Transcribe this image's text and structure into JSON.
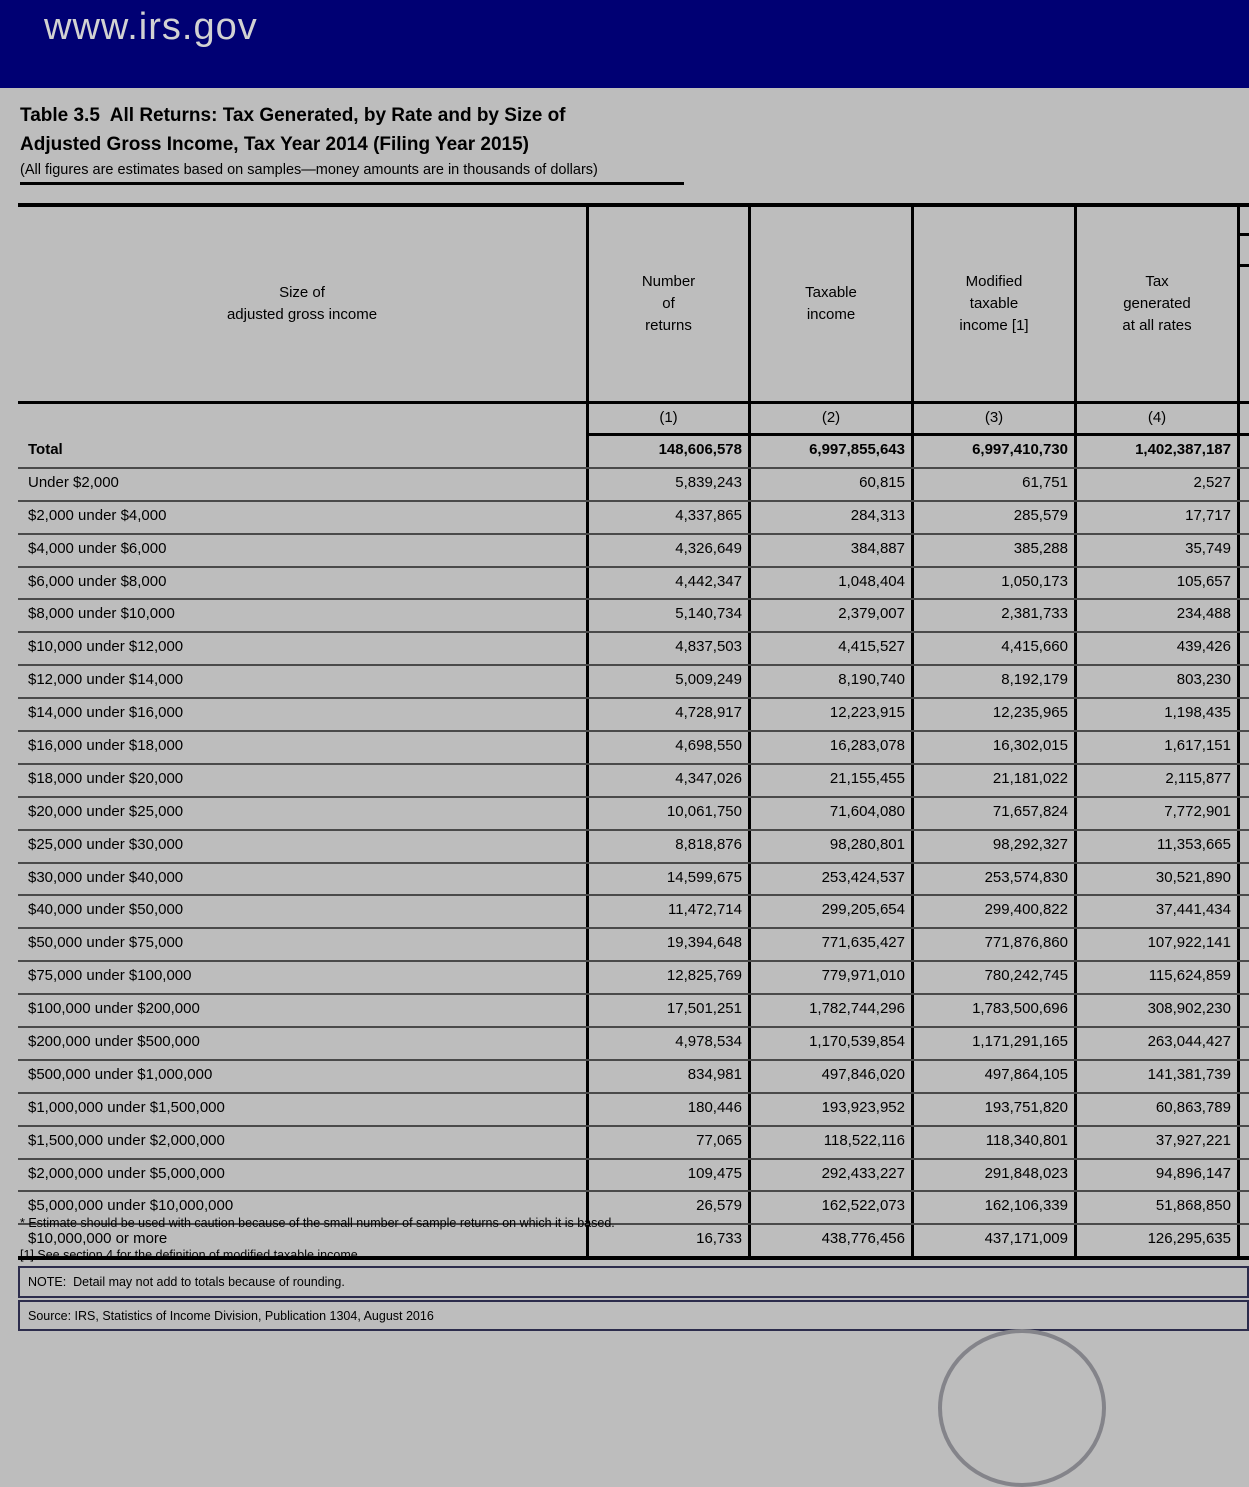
{
  "browser": {
    "url_text": "www.irs.gov"
  },
  "title": {
    "line1": "Table 3.5  All Returns: Tax Generated, by Rate and by Size of",
    "line2": "Adjusted Gross Income, Tax Year 2014 (Filing Year 2015)",
    "subtitle": "(All figures are estimates based on samples—money amounts are in thousands of dollars)"
  },
  "table": {
    "columns": [
      {
        "label": "Size of\nadjusted gross income",
        "number": ""
      },
      {
        "label": "Number\nof\nreturns",
        "number": "(1)"
      },
      {
        "label": "Taxable\nincome",
        "number": "(2)"
      },
      {
        "label": "Modified\ntaxable\nincome [1]",
        "number": "(3)"
      },
      {
        "label": "Tax\ngenerated\nat all rates",
        "number": "(4)"
      }
    ],
    "rows": [
      {
        "label": "Total",
        "bold": true,
        "values": [
          "148,606,578",
          "6,997,855,643",
          "6,997,410,730",
          "1,402,387,187"
        ]
      },
      {
        "label": "Under $2,000",
        "bold": false,
        "values": [
          "5,839,243",
          "60,815",
          "61,751",
          "2,527"
        ]
      },
      {
        "label": "$2,000 under $4,000",
        "bold": false,
        "values": [
          "4,337,865",
          "284,313",
          "285,579",
          "17,717"
        ]
      },
      {
        "label": "$4,000 under $6,000",
        "bold": false,
        "values": [
          "4,326,649",
          "384,887",
          "385,288",
          "35,749"
        ]
      },
      {
        "label": "$6,000 under $8,000",
        "bold": false,
        "values": [
          "4,442,347",
          "1,048,404",
          "1,050,173",
          "105,657"
        ]
      },
      {
        "label": "$8,000 under $10,000",
        "bold": false,
        "values": [
          "5,140,734",
          "2,379,007",
          "2,381,733",
          "234,488"
        ]
      },
      {
        "label": "$10,000 under $12,000",
        "bold": false,
        "values": [
          "4,837,503",
          "4,415,527",
          "4,415,660",
          "439,426"
        ]
      },
      {
        "label": "$12,000 under $14,000",
        "bold": false,
        "values": [
          "5,009,249",
          "8,190,740",
          "8,192,179",
          "803,230"
        ]
      },
      {
        "label": "$14,000 under $16,000",
        "bold": false,
        "values": [
          "4,728,917",
          "12,223,915",
          "12,235,965",
          "1,198,435"
        ]
      },
      {
        "label": "$16,000 under $18,000",
        "bold": false,
        "values": [
          "4,698,550",
          "16,283,078",
          "16,302,015",
          "1,617,151"
        ]
      },
      {
        "label": "$18,000 under $20,000",
        "bold": false,
        "values": [
          "4,347,026",
          "21,155,455",
          "21,181,022",
          "2,115,877"
        ]
      },
      {
        "label": "$20,000 under $25,000",
        "bold": false,
        "values": [
          "10,061,750",
          "71,604,080",
          "71,657,824",
          "7,772,901"
        ]
      },
      {
        "label": "$25,000 under $30,000",
        "bold": false,
        "values": [
          "8,818,876",
          "98,280,801",
          "98,292,327",
          "11,353,665"
        ]
      },
      {
        "label": "$30,000 under $40,000",
        "bold": false,
        "values": [
          "14,599,675",
          "253,424,537",
          "253,574,830",
          "30,521,890"
        ]
      },
      {
        "label": "$40,000 under $50,000",
        "bold": false,
        "values": [
          "11,472,714",
          "299,205,654",
          "299,400,822",
          "37,441,434"
        ]
      },
      {
        "label": "$50,000 under $75,000",
        "bold": false,
        "values": [
          "19,394,648",
          "771,635,427",
          "771,876,860",
          "107,922,141"
        ]
      },
      {
        "label": "$75,000 under $100,000",
        "bold": false,
        "values": [
          "12,825,769",
          "779,971,010",
          "780,242,745",
          "115,624,859"
        ]
      },
      {
        "label": "$100,000 under $200,000",
        "bold": false,
        "values": [
          "17,501,251",
          "1,782,744,296",
          "1,783,500,696",
          "308,902,230"
        ]
      },
      {
        "label": "$200,000 under $500,000",
        "bold": false,
        "values": [
          "4,978,534",
          "1,170,539,854",
          "1,171,291,165",
          "263,044,427"
        ]
      },
      {
        "label": "$500,000 under $1,000,000",
        "bold": false,
        "values": [
          "834,981",
          "497,846,020",
          "497,864,105",
          "141,381,739"
        ]
      },
      {
        "label": "$1,000,000 under $1,500,000",
        "bold": false,
        "values": [
          "180,446",
          "193,923,952",
          "193,751,820",
          "60,863,789"
        ]
      },
      {
        "label": "$1,500,000 under $2,000,000",
        "bold": false,
        "values": [
          "77,065",
          "118,522,116",
          "118,340,801",
          "37,927,221"
        ]
      },
      {
        "label": "$2,000,000 under $5,000,000",
        "bold": false,
        "values": [
          "109,475",
          "292,433,227",
          "291,848,023",
          "94,896,147"
        ]
      },
      {
        "label": "$5,000,000 under $10,000,000",
        "bold": false,
        "values": [
          "26,579",
          "162,522,073",
          "162,106,339",
          "51,868,850"
        ]
      },
      {
        "label": "$10,000,000 or more",
        "bold": false,
        "values": [
          "16,733",
          "438,776,456",
          "437,171,009",
          "126,295,635"
        ]
      }
    ]
  },
  "footnotes": {
    "asterisk": "* Estimate should be used with caution because of the small number of sample returns on which it is based.",
    "note1": "[1] See section 4 for the definition of modified taxable income.",
    "note_box": "NOTE:  Detail may not add to totals because of rounding.",
    "source_box": "Source: IRS, Statistics of Income Division, Publication 1304, August 2016"
  },
  "colors": {
    "navbar_bg": "#000073",
    "navbar_text": "#d2d2d2",
    "page_bg": "#bdbdbd",
    "table_border": "#000000",
    "row_separator": "#4a4a4a",
    "infobox_border": "#2c2c4c"
  }
}
